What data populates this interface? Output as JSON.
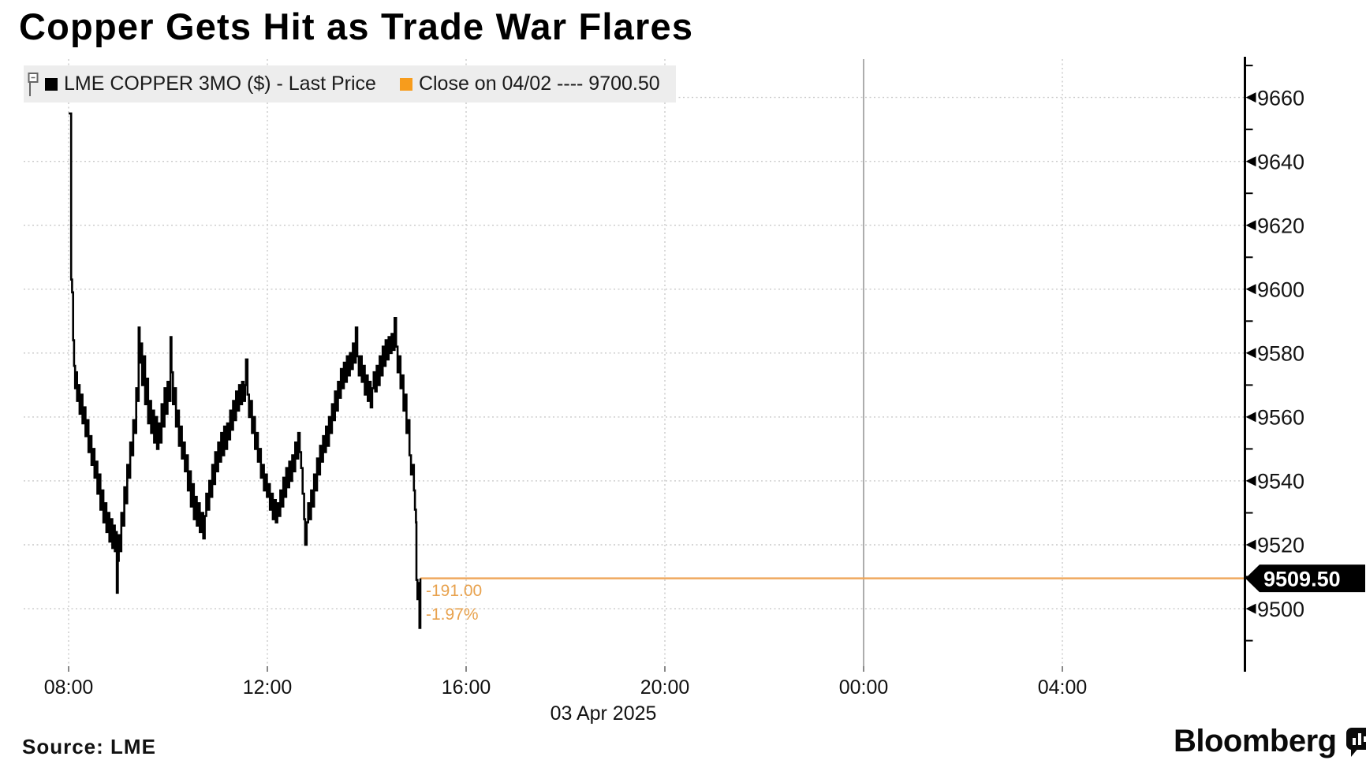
{
  "title": "Copper Gets Hit as Trade War Flares",
  "source_label": "Source: LME",
  "brand": {
    "wordmark": "Bloomberg"
  },
  "legend": {
    "items": [
      {
        "label": "LME COPPER 3MO ($) - Last Price",
        "swatch_color": "#000000"
      },
      {
        "label": "Close on 04/02 ---- 9700.50",
        "swatch_color": "#F79C1C"
      }
    ]
  },
  "chart_data": {
    "type": "line",
    "title": "Copper Gets Hit as Trade War Flares",
    "xlabel": "",
    "ylabel": "",
    "legend_position": "top-left",
    "grid": {
      "dotted_color": "#C9C9C9",
      "midnight_line_color": "#ADADAD",
      "axis_color": "#000000"
    },
    "y_axis": {
      "side": "right",
      "min": 9482,
      "max": 9672,
      "major_ticks": [
        9500,
        9520,
        9540,
        9560,
        9580,
        9600,
        9620,
        9640,
        9660
      ],
      "minor_tick_step": 10,
      "last_price": 9509.5,
      "last_price_label": "9509.50",
      "badge_bg": "#000000",
      "badge_text_color": "#ffffff"
    },
    "x_axis": {
      "start_hour": 8,
      "ticks": [
        {
          "hour": 8,
          "label": "08:00"
        },
        {
          "hour": 12,
          "label": "12:00"
        },
        {
          "hour": 16,
          "label": "16:00"
        },
        {
          "hour": 20,
          "label": "20:00"
        },
        {
          "hour": 24,
          "label": "00:00",
          "solid": true
        },
        {
          "hour": 28,
          "label": "04:00"
        }
      ],
      "date_label": "03 Apr 2025"
    },
    "close_reference": {
      "label": "Close on 04/02",
      "value": 9700.5
    },
    "annotations": [
      {
        "text": "-191.00",
        "hour": 15.19,
        "price": 9504,
        "color": "#E8A24E"
      },
      {
        "text": "-1.97%",
        "hour": 15.19,
        "price": 9496.5,
        "color": "#E8A24E"
      }
    ],
    "series": [
      {
        "name": "LME COPPER 3MO ($) - Last Price",
        "color": "#000000",
        "style": "step",
        "points": [
          [
            8.0,
            9655
          ],
          [
            8.04,
            9655
          ],
          [
            8.05,
            9603
          ],
          [
            8.07,
            9599
          ],
          [
            8.09,
            9584
          ],
          [
            8.11,
            9576
          ],
          [
            8.13,
            9569
          ],
          [
            8.15,
            9574
          ],
          [
            8.17,
            9565
          ],
          [
            8.19,
            9570
          ],
          [
            8.22,
            9561
          ],
          [
            8.25,
            9567
          ],
          [
            8.28,
            9558
          ],
          [
            8.31,
            9563
          ],
          [
            8.34,
            9554
          ],
          [
            8.37,
            9559
          ],
          [
            8.4,
            9549
          ],
          [
            8.43,
            9554
          ],
          [
            8.46,
            9545
          ],
          [
            8.49,
            9550
          ],
          [
            8.52,
            9541
          ],
          [
            8.55,
            9546
          ],
          [
            8.58,
            9536
          ],
          [
            8.61,
            9542
          ],
          [
            8.64,
            9531
          ],
          [
            8.67,
            9537
          ],
          [
            8.7,
            9527
          ],
          [
            8.73,
            9533
          ],
          [
            8.76,
            9524
          ],
          [
            8.79,
            9530
          ],
          [
            8.82,
            9521
          ],
          [
            8.85,
            9528
          ],
          [
            8.88,
            9519
          ],
          [
            8.91,
            9526
          ],
          [
            8.93,
            9518
          ],
          [
            8.95,
            9524
          ],
          [
            8.97,
            9505
          ],
          [
            8.99,
            9515
          ],
          [
            9.01,
            9523
          ],
          [
            9.03,
            9518
          ],
          [
            9.06,
            9530
          ],
          [
            9.09,
            9526
          ],
          [
            9.12,
            9538
          ],
          [
            9.15,
            9533
          ],
          [
            9.18,
            9545
          ],
          [
            9.21,
            9541
          ],
          [
            9.24,
            9552
          ],
          [
            9.27,
            9548
          ],
          [
            9.3,
            9559
          ],
          [
            9.33,
            9555
          ],
          [
            9.36,
            9569
          ],
          [
            9.39,
            9565
          ],
          [
            9.41,
            9588
          ],
          [
            9.43,
            9577
          ],
          [
            9.45,
            9583
          ],
          [
            9.48,
            9570
          ],
          [
            9.51,
            9579
          ],
          [
            9.54,
            9564
          ],
          [
            9.57,
            9572
          ],
          [
            9.6,
            9558
          ],
          [
            9.63,
            9565
          ],
          [
            9.66,
            9555
          ],
          [
            9.69,
            9562
          ],
          [
            9.72,
            9552
          ],
          [
            9.75,
            9560
          ],
          [
            9.78,
            9550
          ],
          [
            9.81,
            9558
          ],
          [
            9.84,
            9552
          ],
          [
            9.87,
            9564
          ],
          [
            9.9,
            9557
          ],
          [
            9.93,
            9569
          ],
          [
            9.96,
            9561
          ],
          [
            9.99,
            9571
          ],
          [
            10.02,
            9565
          ],
          [
            10.05,
            9585
          ],
          [
            10.07,
            9574
          ],
          [
            10.1,
            9564
          ],
          [
            10.13,
            9569
          ],
          [
            10.16,
            9557
          ],
          [
            10.19,
            9562
          ],
          [
            10.22,
            9551
          ],
          [
            10.25,
            9557
          ],
          [
            10.28,
            9547
          ],
          [
            10.31,
            9552
          ],
          [
            10.34,
            9543
          ],
          [
            10.37,
            9548
          ],
          [
            10.4,
            9537
          ],
          [
            10.43,
            9543
          ],
          [
            10.46,
            9532
          ],
          [
            10.49,
            9539
          ],
          [
            10.52,
            9528
          ],
          [
            10.55,
            9535
          ],
          [
            10.58,
            9526
          ],
          [
            10.61,
            9533
          ],
          [
            10.64,
            9524
          ],
          [
            10.67,
            9530
          ],
          [
            10.71,
            9522
          ],
          [
            10.74,
            9529
          ],
          [
            10.77,
            9536
          ],
          [
            10.8,
            9531
          ],
          [
            10.83,
            9540
          ],
          [
            10.86,
            9535
          ],
          [
            10.89,
            9545
          ],
          [
            10.92,
            9539
          ],
          [
            10.95,
            9549
          ],
          [
            10.98,
            9543
          ],
          [
            11.01,
            9552
          ],
          [
            11.04,
            9546
          ],
          [
            11.07,
            9555
          ],
          [
            11.1,
            9548
          ],
          [
            11.13,
            9557
          ],
          [
            11.16,
            9550
          ],
          [
            11.19,
            9558
          ],
          [
            11.22,
            9553
          ],
          [
            11.25,
            9562
          ],
          [
            11.28,
            9556
          ],
          [
            11.31,
            9565
          ],
          [
            11.34,
            9559
          ],
          [
            11.37,
            9568
          ],
          [
            11.4,
            9562
          ],
          [
            11.43,
            9570
          ],
          [
            11.46,
            9564
          ],
          [
            11.49,
            9571
          ],
          [
            11.52,
            9565
          ],
          [
            11.55,
            9570
          ],
          [
            11.57,
            9578
          ],
          [
            11.6,
            9567
          ],
          [
            11.63,
            9560
          ],
          [
            11.66,
            9565
          ],
          [
            11.69,
            9555
          ],
          [
            11.72,
            9560
          ],
          [
            11.75,
            9550
          ],
          [
            11.78,
            9555
          ],
          [
            11.81,
            9546
          ],
          [
            11.84,
            9550
          ],
          [
            11.87,
            9541
          ],
          [
            11.9,
            9545
          ],
          [
            11.93,
            9537
          ],
          [
            11.96,
            9542
          ],
          [
            11.99,
            9535
          ],
          [
            12.02,
            9539
          ],
          [
            12.05,
            9531
          ],
          [
            12.08,
            9536
          ],
          [
            12.11,
            9528
          ],
          [
            12.14,
            9534
          ],
          [
            12.17,
            9527
          ],
          [
            12.2,
            9533
          ],
          [
            12.23,
            9529
          ],
          [
            12.26,
            9537
          ],
          [
            12.29,
            9532
          ],
          [
            12.32,
            9541
          ],
          [
            12.35,
            9535
          ],
          [
            12.38,
            9544
          ],
          [
            12.41,
            9538
          ],
          [
            12.44,
            9546
          ],
          [
            12.47,
            9540
          ],
          [
            12.5,
            9548
          ],
          [
            12.53,
            9543
          ],
          [
            12.56,
            9552
          ],
          [
            12.59,
            9547
          ],
          [
            12.62,
            9555
          ],
          [
            12.65,
            9549
          ],
          [
            12.68,
            9544
          ],
          [
            12.71,
            9536
          ],
          [
            12.74,
            9528
          ],
          [
            12.76,
            9520
          ],
          [
            12.79,
            9527
          ],
          [
            12.82,
            9533
          ],
          [
            12.85,
            9528
          ],
          [
            12.88,
            9537
          ],
          [
            12.91,
            9532
          ],
          [
            12.94,
            9542
          ],
          [
            12.97,
            9537
          ],
          [
            13.0,
            9547
          ],
          [
            13.03,
            9542
          ],
          [
            13.06,
            9551
          ],
          [
            13.09,
            9546
          ],
          [
            13.12,
            9554
          ],
          [
            13.15,
            9549
          ],
          [
            13.18,
            9557
          ],
          [
            13.21,
            9551
          ],
          [
            13.24,
            9560
          ],
          [
            13.27,
            9555
          ],
          [
            13.3,
            9564
          ],
          [
            13.33,
            9559
          ],
          [
            13.36,
            9568
          ],
          [
            13.39,
            9562
          ],
          [
            13.42,
            9571
          ],
          [
            13.45,
            9566
          ],
          [
            13.48,
            9575
          ],
          [
            13.51,
            9569
          ],
          [
            13.54,
            9577
          ],
          [
            13.57,
            9571
          ],
          [
            13.6,
            9579
          ],
          [
            13.63,
            9573
          ],
          [
            13.66,
            9580
          ],
          [
            13.69,
            9575
          ],
          [
            13.72,
            9583
          ],
          [
            13.75,
            9577
          ],
          [
            13.78,
            9588
          ],
          [
            13.81,
            9579
          ],
          [
            13.84,
            9573
          ],
          [
            13.87,
            9579
          ],
          [
            13.9,
            9571
          ],
          [
            13.93,
            9576
          ],
          [
            13.96,
            9567
          ],
          [
            13.99,
            9573
          ],
          [
            14.02,
            9565
          ],
          [
            14.05,
            9571
          ],
          [
            14.08,
            9563
          ],
          [
            14.11,
            9569
          ],
          [
            14.14,
            9574
          ],
          [
            14.17,
            9568
          ],
          [
            14.2,
            9576
          ],
          [
            14.23,
            9570
          ],
          [
            14.26,
            9579
          ],
          [
            14.29,
            9573
          ],
          [
            14.32,
            9582
          ],
          [
            14.35,
            9576
          ],
          [
            14.38,
            9584
          ],
          [
            14.41,
            9578
          ],
          [
            14.44,
            9585
          ],
          [
            14.47,
            9580
          ],
          [
            14.5,
            9586
          ],
          [
            14.53,
            9581
          ],
          [
            14.56,
            9591
          ],
          [
            14.59,
            9582
          ],
          [
            14.62,
            9574
          ],
          [
            14.65,
            9579
          ],
          [
            14.68,
            9569
          ],
          [
            14.71,
            9573
          ],
          [
            14.74,
            9562
          ],
          [
            14.77,
            9567
          ],
          [
            14.8,
            9555
          ],
          [
            14.83,
            9559
          ],
          [
            14.86,
            9548
          ],
          [
            14.89,
            9542
          ],
          [
            14.92,
            9545
          ],
          [
            14.95,
            9537
          ],
          [
            14.97,
            9531
          ],
          [
            14.99,
            9527
          ],
          [
            15.0,
            9509
          ],
          [
            15.02,
            9503
          ],
          [
            15.04,
            9508
          ],
          [
            15.06,
            9494
          ],
          [
            15.08,
            9509.5
          ]
        ]
      },
      {
        "name": "Last price track line",
        "color": "#EFA65A",
        "style": "hline",
        "value": 9509.5,
        "from_hour": 15.08
      }
    ]
  }
}
